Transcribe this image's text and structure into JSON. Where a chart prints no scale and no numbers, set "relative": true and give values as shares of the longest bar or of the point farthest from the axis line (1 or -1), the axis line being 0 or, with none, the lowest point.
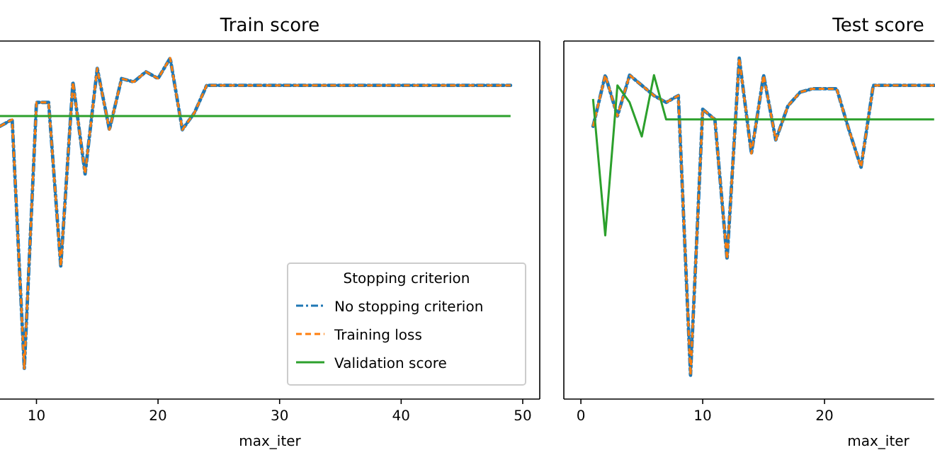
{
  "chart_data": [
    {
      "type": "line",
      "title": "Train score",
      "xlabel": "max_iter",
      "relative": true,
      "xlim": [
        7,
        51.4
      ],
      "xticks": [
        10,
        20,
        30,
        40,
        50
      ],
      "legend": "bottom right",
      "legend_title": "Stopping criterion",
      "x": [
        7,
        8,
        9,
        10,
        11,
        12,
        13,
        14,
        15,
        16,
        17,
        18,
        19,
        20,
        21,
        22,
        23,
        24,
        25,
        26,
        27,
        28,
        29,
        30,
        31,
        32,
        33,
        34,
        35,
        36,
        37,
        38,
        39,
        40,
        41,
        42,
        43,
        44,
        45,
        46,
        47,
        48,
        49
      ],
      "series": [
        {
          "name": "No stopping criterion",
          "color": "#1f77b4",
          "line_style": "dashdot",
          "values": [
            0.8,
            0.82,
            0.09,
            0.87,
            0.87,
            0.39,
            0.93,
            0.66,
            0.97,
            0.79,
            0.94,
            0.93,
            0.96,
            0.94,
            1,
            0.79,
            0.84,
            0.92,
            0.92,
            0.92,
            0.92,
            0.92,
            0.92,
            0.92,
            0.92,
            0.92,
            0.92,
            0.92,
            0.92,
            0.92,
            0.92,
            0.92,
            0.92,
            0.92,
            0.92,
            0.92,
            0.92,
            0.92,
            0.92,
            0.92,
            0.92,
            0.92,
            0.92
          ]
        },
        {
          "name": "Training loss",
          "color": "#ff7f0e",
          "line_style": "dashed",
          "values": [
            0.8,
            0.82,
            0.09,
            0.87,
            0.87,
            0.39,
            0.93,
            0.66,
            0.97,
            0.79,
            0.94,
            0.93,
            0.96,
            0.94,
            1,
            0.79,
            0.84,
            0.92,
            0.92,
            0.92,
            0.92,
            0.92,
            0.92,
            0.92,
            0.92,
            0.92,
            0.92,
            0.92,
            0.92,
            0.92,
            0.92,
            0.92,
            0.92,
            0.92,
            0.92,
            0.92,
            0.92,
            0.92,
            0.92,
            0.92,
            0.92,
            0.92,
            0.92
          ]
        },
        {
          "name": "Validation score",
          "color": "#2ca02c",
          "line_style": "solid",
          "values": [
            0.83,
            0.83,
            0.83,
            0.83,
            0.83,
            0.83,
            0.83,
            0.83,
            0.83,
            0.83,
            0.83,
            0.83,
            0.83,
            0.83,
            0.83,
            0.83,
            0.83,
            0.83,
            0.83,
            0.83,
            0.83,
            0.83,
            0.83,
            0.83,
            0.83,
            0.83,
            0.83,
            0.83,
            0.83,
            0.83,
            0.83,
            0.83,
            0.83,
            0.83,
            0.83,
            0.83,
            0.83,
            0.83,
            0.83,
            0.83,
            0.83,
            0.83,
            0.83
          ]
        }
      ]
    },
    {
      "type": "line",
      "title": "Test score",
      "xlabel": "max_iter",
      "relative": true,
      "xlim": [
        -1.4,
        29
      ],
      "xticks": [
        0,
        10,
        20
      ],
      "x": [
        1,
        2,
        3,
        4,
        5,
        6,
        7,
        8,
        9,
        10,
        11,
        12,
        13,
        14,
        15,
        16,
        17,
        18,
        19,
        20,
        21,
        22,
        23,
        24,
        25,
        26,
        27,
        28,
        29
      ],
      "series": [
        {
          "color": "#1f77b4",
          "line_style": "dashdot",
          "values": [
            0.8,
            0.95,
            0.83,
            0.95,
            0.92,
            0.89,
            0.87,
            0.89,
            0.07,
            0.85,
            0.82,
            0.41,
            1,
            0.72,
            0.95,
            0.76,
            0.86,
            0.9,
            0.91,
            0.91,
            0.91,
            0.79,
            0.68,
            0.92,
            0.92,
            0.92,
            0.92,
            0.92,
            0.92
          ]
        },
        {
          "color": "#ff7f0e",
          "line_style": "dashed",
          "values": [
            0.8,
            0.95,
            0.83,
            0.95,
            0.92,
            0.89,
            0.87,
            0.89,
            0.07,
            0.85,
            0.82,
            0.41,
            1,
            0.72,
            0.95,
            0.76,
            0.86,
            0.9,
            0.91,
            0.91,
            0.91,
            0.79,
            0.68,
            0.92,
            0.92,
            0.92,
            0.92,
            0.92,
            0.92
          ]
        },
        {
          "color": "#2ca02c",
          "line_style": "solid",
          "values": [
            0.88,
            0.48,
            0.92,
            0.87,
            0.77,
            0.95,
            0.82,
            0.82,
            0.82,
            0.82,
            0.82,
            0.82,
            0.82,
            0.82,
            0.82,
            0.82,
            0.82,
            0.82,
            0.82,
            0.82,
            0.82,
            0.82,
            0.82,
            0.82,
            0.82,
            0.82,
            0.82,
            0.82,
            0.82
          ]
        }
      ]
    }
  ]
}
